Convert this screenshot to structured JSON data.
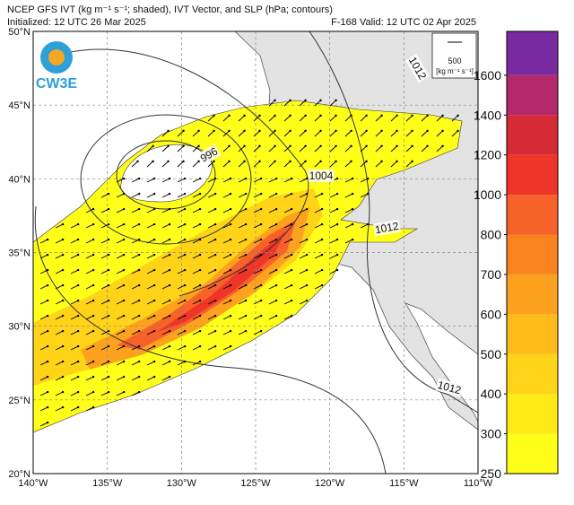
{
  "header": {
    "title": "NCEP GFS IVT (kg m⁻¹ s⁻¹; shaded), IVT Vector, and SLP (hPa; contours)",
    "initialized": "Initialized: 12 UTC 26 Mar 2025",
    "valid": "F-168  Valid: 12 UTC 02 Apr 2025"
  },
  "logo": {
    "text": "CW3E"
  },
  "map": {
    "lon_ticks": [
      {
        "value": -140,
        "label": "140°W"
      },
      {
        "value": -135,
        "label": "135°W"
      },
      {
        "value": -130,
        "label": "130°W"
      },
      {
        "value": -125,
        "label": "125°W"
      },
      {
        "value": -120,
        "label": "120°W"
      },
      {
        "value": -115,
        "label": "115°W"
      },
      {
        "value": -110,
        "label": "110°W"
      }
    ],
    "lat_ticks": [
      {
        "value": 50,
        "label": "50°N"
      },
      {
        "value": 45,
        "label": "45°N"
      },
      {
        "value": 40,
        "label": "40°N"
      },
      {
        "value": 35,
        "label": "35°N"
      },
      {
        "value": 30,
        "label": "30°N"
      },
      {
        "value": 25,
        "label": "25°N"
      },
      {
        "value": 20,
        "label": "20°N"
      }
    ],
    "contour_labels": [
      "996",
      "1004",
      "1012",
      "1012",
      "1012"
    ],
    "reference_vector": {
      "value": 500,
      "unit": "[kg m⁻¹ s⁻¹]"
    }
  },
  "colorbar": {
    "levels": [
      250,
      300,
      400,
      500,
      600,
      700,
      800,
      1000,
      1200,
      1400,
      1600
    ],
    "colors": [
      "#ffff1a",
      "#ffea16",
      "#ffd317",
      "#ffbb1a",
      "#fda21e",
      "#f9841f",
      "#f7612a",
      "#ef3527",
      "#d62a36",
      "#b3286a",
      "#7a2aa0"
    ]
  }
}
